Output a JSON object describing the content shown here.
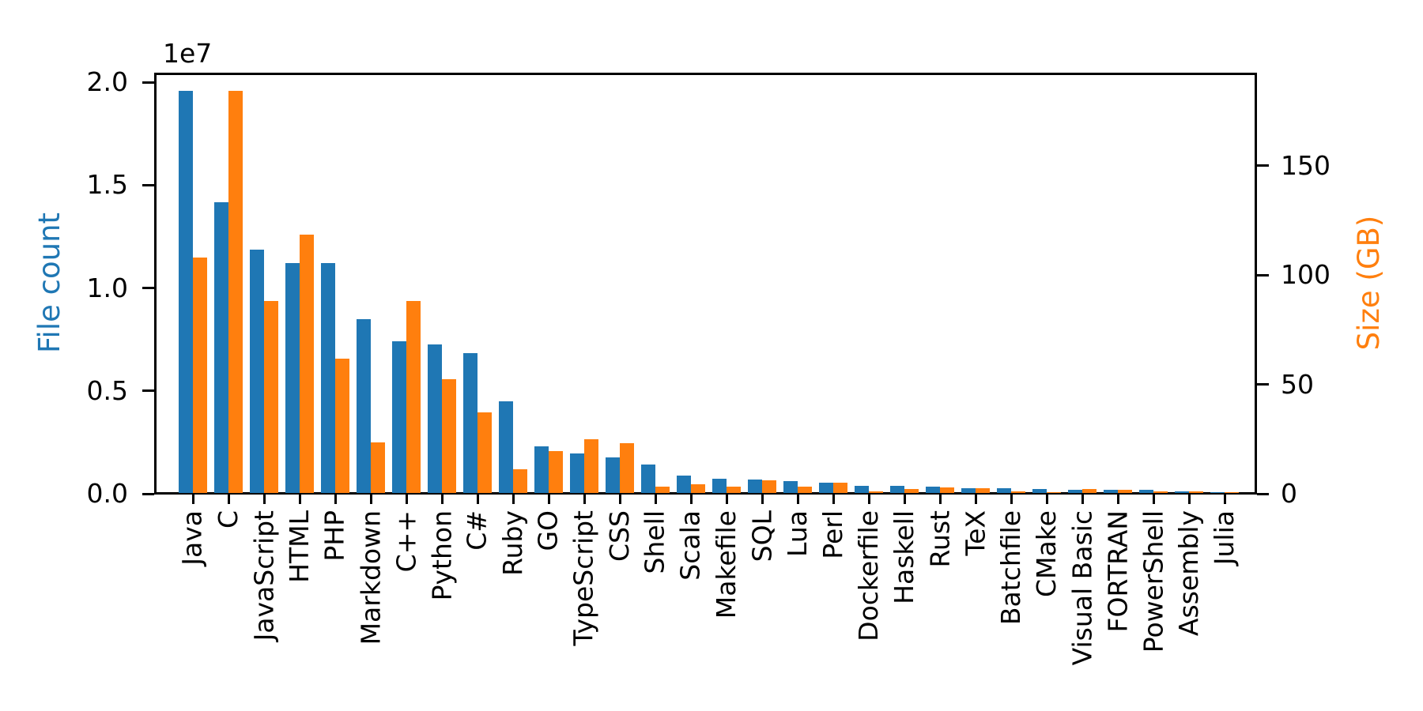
{
  "chart_data": {
    "type": "bar",
    "title": "",
    "categories": [
      "Java",
      "C",
      "JavaScript",
      "HTML",
      "PHP",
      "Markdown",
      "C++",
      "Python",
      "C#",
      "Ruby",
      "GO",
      "TypeScript",
      "CSS",
      "Shell",
      "Scala",
      "Makefile",
      "SQL",
      "Lua",
      "Perl",
      "Dockerfile",
      "Haskell",
      "Rust",
      "TeX",
      "Batchfile",
      "CMake",
      "Visual Basic",
      "FORTRAN",
      "PowerShell",
      "Assembly",
      "Julia"
    ],
    "series": [
      {
        "name": "File count",
        "axis": "left",
        "color": "#1f77b4",
        "values": [
          19548190,
          14143113,
          11839883,
          11178557,
          11177610,
          8464626,
          7380520,
          7226626,
          6811652,
          4473331,
          2265436,
          1940406,
          1734406,
          1385648,
          835755,
          679430,
          656671,
          578554,
          497949,
          366505,
          340240,
          322431,
          251015,
          236945,
          175282,
          155652,
          142038,
          136846,
          82905,
          58317
        ]
      },
      {
        "name": "Size (GB)",
        "axis": "right",
        "color": "#ff7f0e",
        "values": [
          107.7,
          183.83,
          87.82,
          118.12,
          61.41,
          23.09,
          87.73,
          52.03,
          36.83,
          10.95,
          19.28,
          24.59,
          22.67,
          3.01,
          3.87,
          2.92,
          5.67,
          2.81,
          4.7,
          0.71,
          1.85,
          2.68,
          2.15,
          0.7,
          0.54,
          1.91,
          1.62,
          0.69,
          0.78,
          0.29
        ]
      }
    ],
    "ylabel_left": "File count",
    "ylabel_right": "Size (GB)",
    "offset_text": "1e7",
    "left_axis": {
      "range": [
        0,
        20460000
      ],
      "ticks": [
        0,
        5000000,
        10000000,
        15000000,
        20000000
      ],
      "tick_labels": [
        "0.0",
        "0.5",
        "1.0",
        "1.5",
        "2.0"
      ]
    },
    "right_axis": {
      "range": [
        0,
        192.4
      ],
      "ticks": [
        0,
        50,
        100,
        150
      ],
      "tick_labels": [
        "0",
        "50",
        "100",
        "150"
      ]
    },
    "grid": false,
    "legend": "none",
    "colors": {
      "file_count": "#1f77b4",
      "size_gb": "#ff7f0e",
      "axis": "#000000"
    }
  }
}
